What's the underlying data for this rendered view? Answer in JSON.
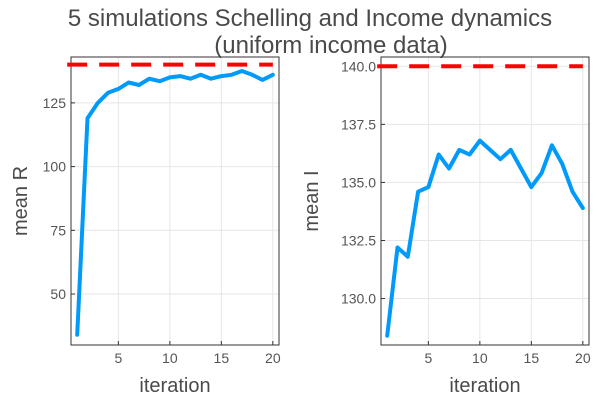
{
  "title_line1": "5 simulations Schelling and Income dynamics",
  "title_line2": "(uniform income data)",
  "colors": {
    "series": "#009AFA",
    "reference": "#FF0000"
  },
  "chart_data": [
    {
      "type": "line",
      "xlabel": "iteration",
      "ylabel": "mean R",
      "xlim": [
        0.4,
        20.6
      ],
      "ylim": [
        30,
        143
      ],
      "xticks": [
        5,
        10,
        15,
        20
      ],
      "yticks": [
        50,
        75,
        100,
        125
      ],
      "ytick_labels": [
        "50",
        "75",
        "100",
        "125"
      ],
      "grid": true,
      "legend": "none",
      "x": [
        1,
        2,
        3,
        4,
        5,
        6,
        7,
        8,
        9,
        10,
        11,
        12,
        13,
        14,
        15,
        16,
        17,
        18,
        19,
        20
      ],
      "series": [
        {
          "values": [
            34,
            119,
            125,
            129,
            130.5,
            133,
            132,
            134.5,
            133.5,
            135,
            135.5,
            134.5,
            136,
            134.5,
            135.5,
            136,
            137.5,
            136,
            134,
            136
          ]
        }
      ],
      "hline": 140
    },
    {
      "type": "line",
      "xlabel": "iteration",
      "ylabel": "mean I",
      "xlim": [
        0.4,
        20.6
      ],
      "ylim": [
        128,
        140.4
      ],
      "xticks": [
        5,
        10,
        15,
        20
      ],
      "yticks": [
        130,
        132.5,
        135,
        137.5,
        140
      ],
      "ytick_labels": [
        "130.0",
        "132.5",
        "135.0",
        "137.5",
        "140.0"
      ],
      "grid": true,
      "legend": "none",
      "x": [
        1,
        2,
        3,
        4,
        5,
        6,
        7,
        8,
        9,
        10,
        11,
        12,
        13,
        14,
        15,
        16,
        17,
        18,
        19,
        20
      ],
      "series": [
        {
          "values": [
            128.4,
            132.2,
            131.8,
            134.6,
            134.8,
            136.2,
            135.6,
            136.4,
            136.2,
            136.8,
            136.4,
            136.0,
            136.4,
            135.6,
            134.8,
            135.4,
            136.6,
            135.8,
            134.6,
            133.9
          ]
        }
      ],
      "hline": 140
    }
  ]
}
